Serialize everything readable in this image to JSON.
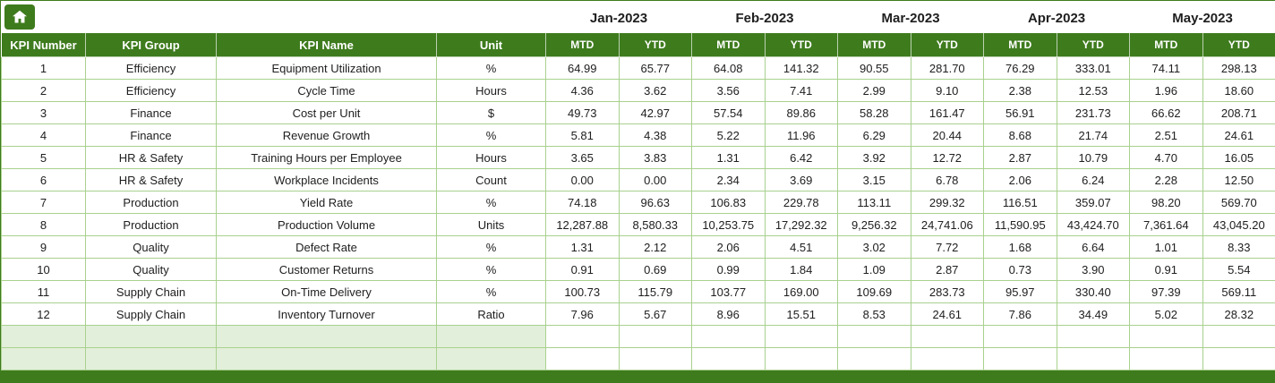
{
  "home": {
    "icon": "home-icon"
  },
  "months": [
    "Jan-2023",
    "Feb-2023",
    "Mar-2023",
    "Apr-2023",
    "May-2023"
  ],
  "period_labels": [
    "MTD",
    "YTD"
  ],
  "columns": [
    "KPI Number",
    "KPI Group",
    "KPI Name",
    "Unit"
  ],
  "rows": [
    {
      "number": "1",
      "group": "Efficiency",
      "name": "Equipment Utilization",
      "unit": "%",
      "values": [
        "64.99",
        "65.77",
        "64.08",
        "141.32",
        "90.55",
        "281.70",
        "76.29",
        "333.01",
        "74.11",
        "298.13"
      ]
    },
    {
      "number": "2",
      "group": "Efficiency",
      "name": "Cycle Time",
      "unit": "Hours",
      "values": [
        "4.36",
        "3.62",
        "3.56",
        "7.41",
        "2.99",
        "9.10",
        "2.38",
        "12.53",
        "1.96",
        "18.60"
      ]
    },
    {
      "number": "3",
      "group": "Finance",
      "name": "Cost per Unit",
      "unit": "$",
      "values": [
        "49.73",
        "42.97",
        "57.54",
        "89.86",
        "58.28",
        "161.47",
        "56.91",
        "231.73",
        "66.62",
        "208.71"
      ]
    },
    {
      "number": "4",
      "group": "Finance",
      "name": "Revenue Growth",
      "unit": "%",
      "values": [
        "5.81",
        "4.38",
        "5.22",
        "11.96",
        "6.29",
        "20.44",
        "8.68",
        "21.74",
        "2.51",
        "24.61"
      ]
    },
    {
      "number": "5",
      "group": "HR & Safety",
      "name": "Training Hours per Employee",
      "unit": "Hours",
      "values": [
        "3.65",
        "3.83",
        "1.31",
        "6.42",
        "3.92",
        "12.72",
        "2.87",
        "10.79",
        "4.70",
        "16.05"
      ]
    },
    {
      "number": "6",
      "group": "HR & Safety",
      "name": "Workplace Incidents",
      "unit": "Count",
      "values": [
        "0.00",
        "0.00",
        "2.34",
        "3.69",
        "3.15",
        "6.78",
        "2.06",
        "6.24",
        "2.28",
        "12.50"
      ]
    },
    {
      "number": "7",
      "group": "Production",
      "name": "Yield Rate",
      "unit": "%",
      "values": [
        "74.18",
        "96.63",
        "106.83",
        "229.78",
        "113.11",
        "299.32",
        "116.51",
        "359.07",
        "98.20",
        "569.70"
      ]
    },
    {
      "number": "8",
      "group": "Production",
      "name": "Production Volume",
      "unit": "Units",
      "values": [
        "12,287.88",
        "8,580.33",
        "10,253.75",
        "17,292.32",
        "9,256.32",
        "24,741.06",
        "11,590.95",
        "43,424.70",
        "7,361.64",
        "43,045.20"
      ]
    },
    {
      "number": "9",
      "group": "Quality",
      "name": "Defect Rate",
      "unit": "%",
      "values": [
        "1.31",
        "2.12",
        "2.06",
        "4.51",
        "3.02",
        "7.72",
        "1.68",
        "6.64",
        "1.01",
        "8.33"
      ]
    },
    {
      "number": "10",
      "group": "Quality",
      "name": "Customer Returns",
      "unit": "%",
      "values": [
        "0.91",
        "0.69",
        "0.99",
        "1.84",
        "1.09",
        "2.87",
        "0.73",
        "3.90",
        "0.91",
        "5.54"
      ]
    },
    {
      "number": "11",
      "group": "Supply Chain",
      "name": "On-Time Delivery",
      "unit": "%",
      "values": [
        "100.73",
        "115.79",
        "103.77",
        "169.00",
        "109.69",
        "283.73",
        "95.97",
        "330.40",
        "97.39",
        "569.11"
      ]
    },
    {
      "number": "12",
      "group": "Supply Chain",
      "name": "Inventory Turnover",
      "unit": "Ratio",
      "values": [
        "7.96",
        "5.67",
        "8.96",
        "15.51",
        "8.53",
        "24.61",
        "7.86",
        "34.49",
        "5.02",
        "28.32"
      ]
    }
  ],
  "empty_rows": 2,
  "colors": {
    "header_green": "#3E7B1D",
    "month_green": "#A9D18E",
    "light_green": "#E2EFDA",
    "grid_green": "#A9D18E",
    "cell_white": "#FFFFFF"
  }
}
